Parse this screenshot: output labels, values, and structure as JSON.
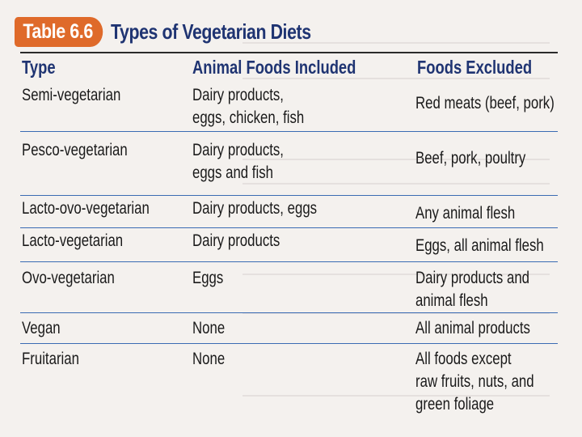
{
  "table": {
    "label": "Table 6.6",
    "title": "Types of Vegetarian Diets",
    "columns": [
      "Type",
      "Animal Foods Included",
      "Foods Excluded"
    ],
    "rows": [
      {
        "type": "Semi-vegetarian",
        "included": [
          "Dairy products,",
          "eggs, chicken, fish"
        ],
        "excluded": [
          "Red meats (beef, pork)"
        ]
      },
      {
        "type": "Pesco-vegetarian",
        "included": [
          "Dairy products,",
          "eggs and fish"
        ],
        "excluded": [
          "Beef, pork, poultry"
        ]
      },
      {
        "type": "Lacto-ovo-vegetarian",
        "included": [
          "Dairy products, eggs"
        ],
        "excluded": [
          "Any animal flesh"
        ]
      },
      {
        "type": "Lacto-vegetarian",
        "included": [
          "Dairy products"
        ],
        "excluded": [
          "Eggs, all animal flesh"
        ]
      },
      {
        "type": "Ovo-vegetarian",
        "included": [
          "Eggs"
        ],
        "excluded": [
          "Dairy products and",
          "animal flesh"
        ]
      },
      {
        "type": "Vegan",
        "included": [
          "None"
        ],
        "excluded": [
          "All animal products"
        ]
      },
      {
        "type": "Fruitarian",
        "included": [
          "None"
        ],
        "excluded": [
          "All foods except",
          "raw fruits, nuts, and",
          "green foliage"
        ]
      }
    ]
  },
  "colors": {
    "badge": "#df6a2a",
    "heading": "#1f3472",
    "rule": "#3a6bb3"
  }
}
